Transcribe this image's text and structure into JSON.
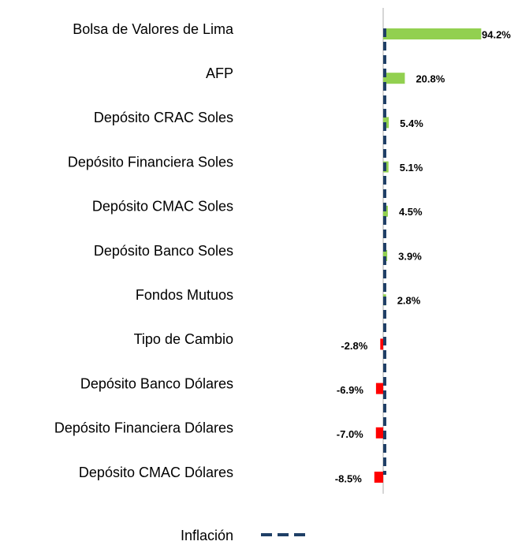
{
  "chart_data": {
    "type": "bar",
    "orientation": "horizontal",
    "categories": [
      "Bolsa de Valores de Lima",
      "AFP",
      "Depósito CRAC Soles",
      "Depósito Financiera Soles",
      "Depósito CMAC Soles",
      "Depósito Banco Soles",
      "Fondos Mutuos",
      "Tipo de Cambio",
      "Depósito Banco Dólares",
      "Depósito Financiera Dólares",
      "Depósito CMAC Dólares"
    ],
    "values": [
      94.2,
      20.8,
      5.4,
      5.1,
      4.5,
      3.9,
      2.8,
      -2.8,
      -6.9,
      -7.0,
      -8.5
    ],
    "value_labels": [
      "94.2%",
      "20.8%",
      "5.4%",
      "5.1%",
      "4.5%",
      "3.9%",
      "2.8%",
      "-2.8%",
      "-6.9%",
      "-7.0%",
      "-8.5%"
    ],
    "positive_color": "#92d050",
    "negative_color": "#ff0000",
    "xlim": [
      -100,
      100
    ],
    "reference_line": {
      "name": "Inflación",
      "value": 1.5,
      "color": "#1f3f66",
      "dashed": true
    }
  }
}
